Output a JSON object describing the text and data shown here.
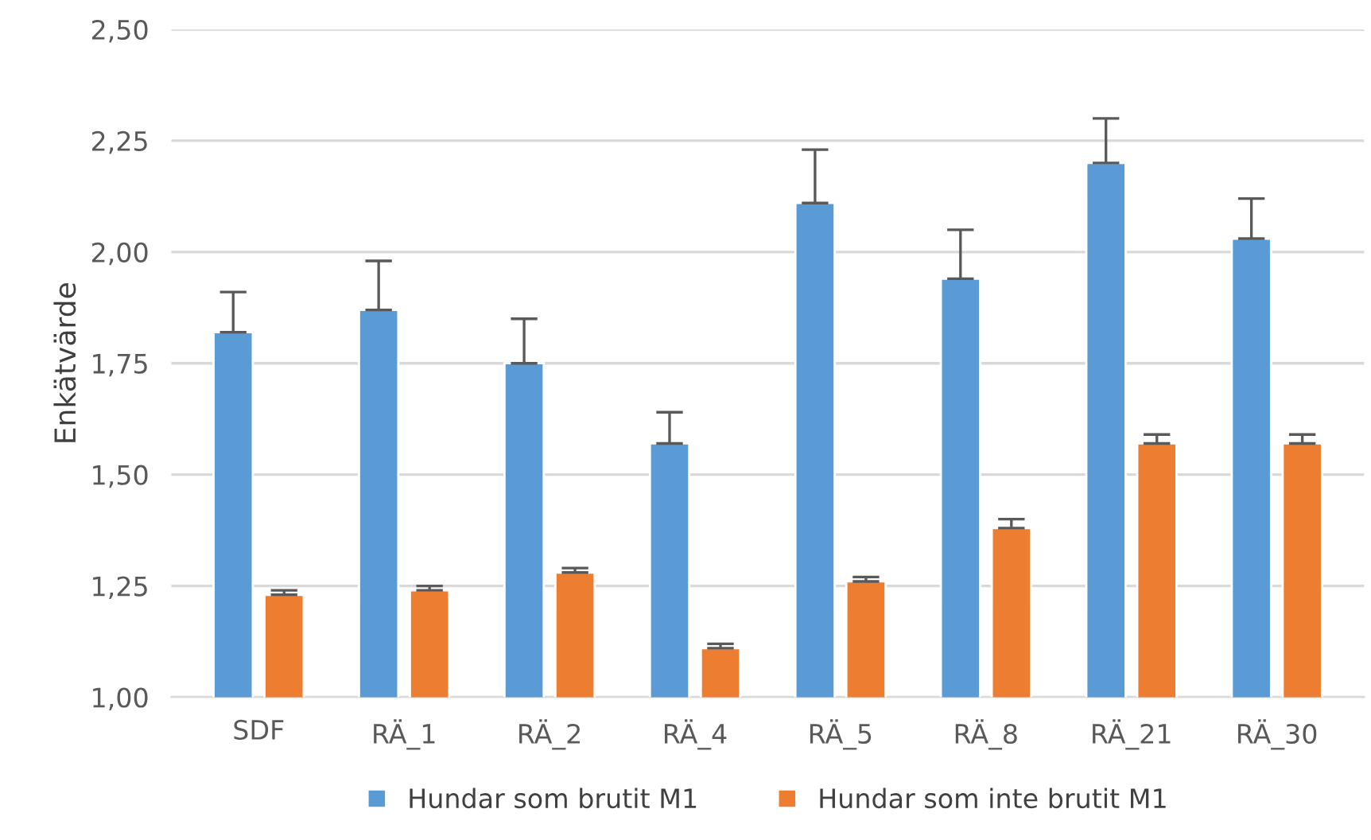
{
  "chart_data": {
    "type": "bar",
    "ylabel": "Enkätvärde",
    "categories": [
      "SDF",
      "RÄ_1",
      "RÄ_2",
      "RÄ_4",
      "RÄ_5",
      "RÄ_8",
      "RÄ_21",
      "RÄ_30"
    ],
    "series": [
      {
        "name": "Hundar som brutit M1",
        "color": "#5b9bd5",
        "values": [
          1.82,
          1.87,
          1.75,
          1.57,
          2.11,
          1.94,
          2.2,
          2.03
        ],
        "errors": [
          [
            1.82,
            1.91
          ],
          [
            1.87,
            1.98
          ],
          [
            1.75,
            1.85
          ],
          [
            1.57,
            1.64
          ],
          [
            2.11,
            2.23
          ],
          [
            1.94,
            2.05
          ],
          [
            2.2,
            2.3
          ],
          [
            2.03,
            2.12
          ]
        ]
      },
      {
        "name": "Hundar som inte brutit M1",
        "color": "#ed7d31",
        "values": [
          1.23,
          1.24,
          1.28,
          1.11,
          1.26,
          1.38,
          1.57,
          1.57
        ],
        "errors": [
          [
            1.23,
            1.24
          ],
          [
            1.24,
            1.25
          ],
          [
            1.28,
            1.29
          ],
          [
            1.11,
            1.12
          ],
          [
            1.26,
            1.27
          ],
          [
            1.38,
            1.4
          ],
          [
            1.57,
            1.59
          ],
          [
            1.57,
            1.59
          ]
        ]
      }
    ],
    "ylim": [
      1.0,
      2.5
    ],
    "yticks": [
      {
        "value": 1.0,
        "label": "1,00"
      },
      {
        "value": 1.25,
        "label": "1,25"
      },
      {
        "value": 1.5,
        "label": "1,50"
      },
      {
        "value": 1.75,
        "label": "1,75"
      },
      {
        "value": 2.0,
        "label": "2,00"
      },
      {
        "value": 2.25,
        "label": "2,25"
      },
      {
        "value": 2.5,
        "label": "2,50"
      }
    ],
    "grid": "y",
    "legend": "bottom"
  }
}
